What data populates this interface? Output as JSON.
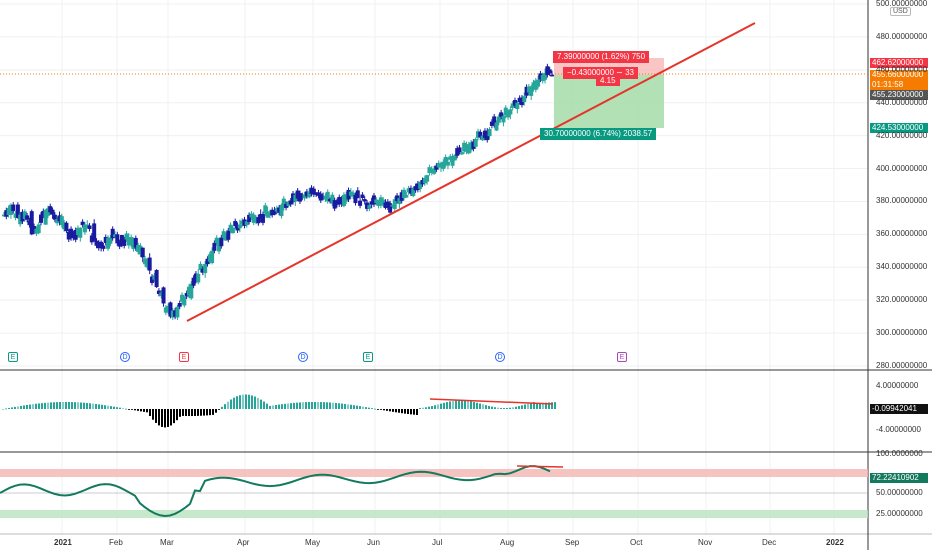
{
  "currency": "USD",
  "price_axis": {
    "ticks": [
      "500.00000000",
      "480.00000000",
      "460.00000000",
      "440.00000000",
      "420.00000000",
      "400.00000000",
      "380.00000000",
      "360.00000000",
      "340.00000000",
      "320.00000000",
      "300.00000000",
      "280.00000000"
    ],
    "min": 280,
    "max": 500
  },
  "macd_axis": {
    "ticks": [
      "4.00000000",
      "-4.00000000"
    ],
    "current": "-0.09942041"
  },
  "rsi_axis": {
    "ticks": [
      "100.0000000",
      "50.00000000",
      "25.00000000"
    ],
    "current": "72.22410902"
  },
  "time_axis": {
    "ticks": [
      "2021",
      "Feb",
      "Mar",
      "Apr",
      "May",
      "Jun",
      "Jul",
      "Aug",
      "Sep",
      "Oct",
      "Nov",
      "Dec",
      "2022"
    ]
  },
  "price_tags": {
    "target": "462.62000000",
    "last": "455.66000000",
    "countdown": "01:31:58",
    "stop_level": "455.23000000",
    "stop": "424.53000000"
  },
  "position": {
    "target_label": "7.39000000 (1.62%) 750",
    "open_label": "−0.43000000 ∼ 33",
    "ratio": "4.15",
    "stop_label": "30.70000000 (6.74%) 2038.57"
  },
  "events": [
    "E",
    "D",
    "E",
    "D",
    "E",
    "D",
    "E"
  ],
  "colors": {
    "up": "#26a69a",
    "down": "#1a1aa0",
    "trend": "#e5342a",
    "profit": "#4caf50",
    "loss": "#f23645",
    "rsi": "#137a5e",
    "macd_up": "#26a69a",
    "macd_dn": "#000000"
  },
  "chart_data": {
    "type": "line",
    "title": "",
    "series": [
      {
        "values": [
          372,
          378,
          370,
          374,
          360,
          366,
          375,
          372,
          368,
          362,
          358,
          364,
          366,
          356,
          352,
          358,
          360,
          354,
          358,
          352,
          346,
          338,
          328,
          318,
          310,
          316,
          322,
          330,
          336,
          342,
          350,
          356,
          360,
          364,
          366,
          368,
          372,
          370,
          374,
          372,
          378,
          380,
          384,
          382,
          386,
          384,
          382,
          380,
          378,
          384,
          386,
          382,
          380,
          378,
          380,
          376,
          378,
          382,
          384,
          388,
          392,
          396,
          400,
          402,
          404,
          408,
          410,
          414,
          418,
          420,
          424,
          428,
          432,
          436,
          440,
          444,
          450,
          454,
          458,
          456
        ]
      }
    ],
    "xlabel": "",
    "ylabel": "",
    "ylim": [
      280,
      500
    ]
  }
}
